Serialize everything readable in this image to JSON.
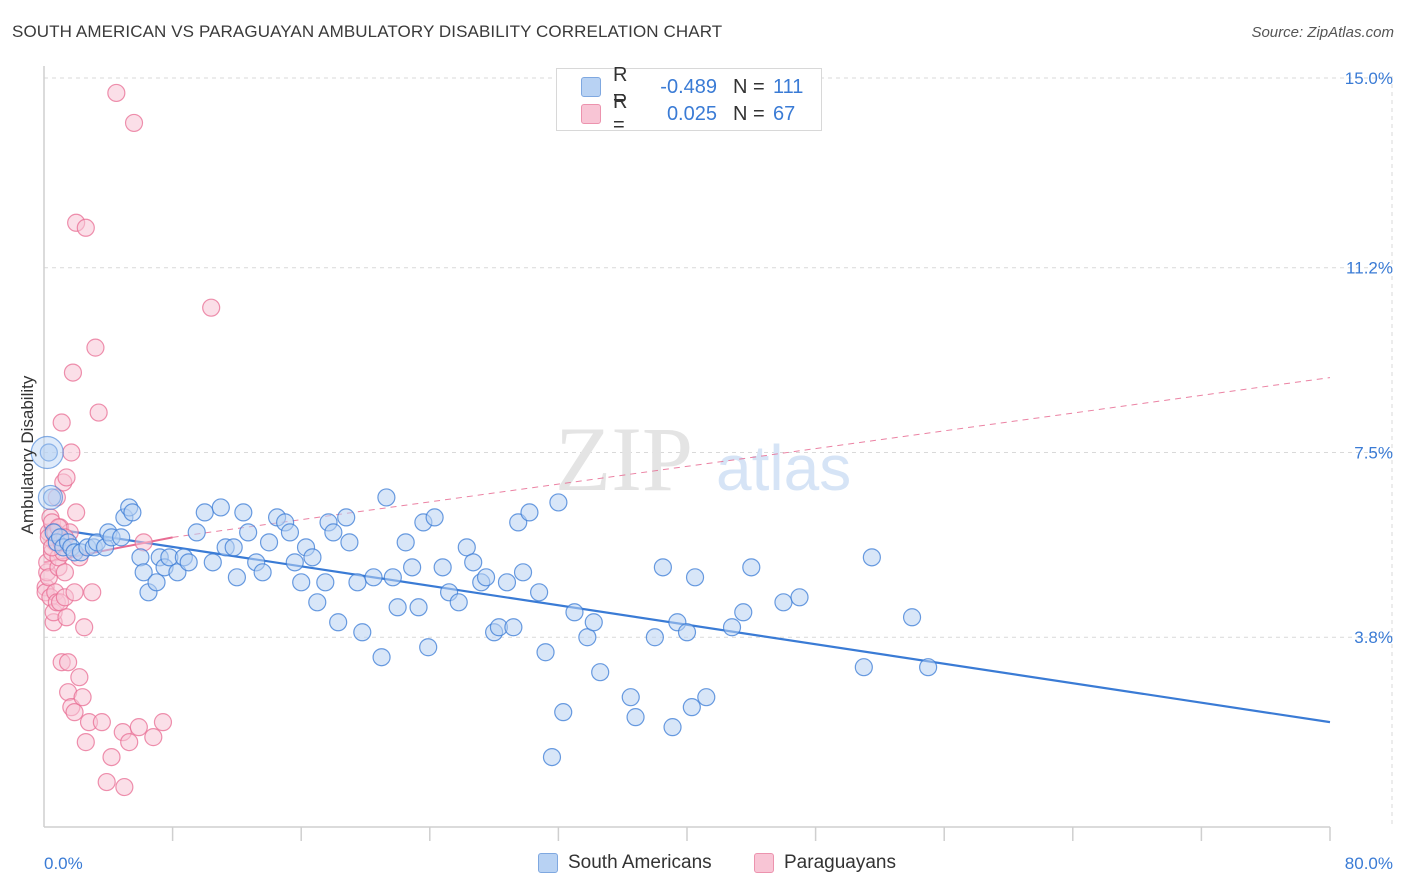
{
  "title": "SOUTH AMERICAN VS PARAGUAYAN AMBULATORY DISABILITY CORRELATION CHART",
  "source": "Source: ZipAtlas.com",
  "watermark": {
    "zip": "ZIP",
    "atlas": "atlas"
  },
  "legend": {
    "rows": [
      {
        "r_label": "R =",
        "r_value": "-0.489",
        "n_label": "N =",
        "n_value": "111"
      },
      {
        "r_label": "R =",
        "r_value": "0.025",
        "n_label": "N =",
        "n_value": "67"
      }
    ]
  },
  "bottom_legend": {
    "series1": "South Americans",
    "series2": "Paraguayans"
  },
  "chart_data": {
    "type": "scatter",
    "title": "SOUTH AMERICAN VS PARAGUAYAN AMBULATORY DISABILITY CORRELATION CHART",
    "xlabel": "",
    "ylabel": "Ambulatory Disability",
    "xlim": [
      0,
      80
    ],
    "ylim": [
      0,
      15.4
    ],
    "x_tick_labels": [
      "0.0%",
      "80.0%"
    ],
    "y_ticks": [
      3.8,
      7.5,
      11.2,
      15.0
    ],
    "y_tick_labels": [
      "3.8%",
      "7.5%",
      "11.2%",
      "15.0%"
    ],
    "colors": {
      "blue": "#3a7bd5",
      "blue_fill": "#b8d2f3",
      "pink": "#e86c93",
      "pink_fill": "#f8c5d5"
    },
    "series": [
      {
        "name": "South Americans",
        "color": "#3a7bd5",
        "trend": {
          "x": [
            0,
            80
          ],
          "y": [
            6.0,
            2.1
          ],
          "style": "solid"
        },
        "points": [
          [
            0.3,
            7.5
          ],
          [
            0.5,
            6.6
          ],
          [
            0.6,
            5.9
          ],
          [
            0.8,
            5.7
          ],
          [
            1.0,
            5.8
          ],
          [
            1.2,
            5.6
          ],
          [
            1.5,
            5.7
          ],
          [
            1.7,
            5.6
          ],
          [
            1.9,
            5.5
          ],
          [
            2.3,
            5.5
          ],
          [
            2.7,
            5.6
          ],
          [
            3.1,
            5.6
          ],
          [
            3.3,
            5.7
          ],
          [
            3.8,
            5.6
          ],
          [
            4.0,
            5.9
          ],
          [
            4.2,
            5.8
          ],
          [
            4.8,
            5.8
          ],
          [
            5.0,
            6.2
          ],
          [
            5.3,
            6.4
          ],
          [
            5.5,
            6.3
          ],
          [
            6.0,
            5.4
          ],
          [
            6.2,
            5.1
          ],
          [
            6.5,
            4.7
          ],
          [
            7.0,
            4.9
          ],
          [
            7.2,
            5.4
          ],
          [
            7.5,
            5.2
          ],
          [
            7.8,
            5.4
          ],
          [
            8.3,
            5.1
          ],
          [
            8.7,
            5.4
          ],
          [
            9.0,
            5.3
          ],
          [
            9.5,
            5.9
          ],
          [
            10.0,
            6.3
          ],
          [
            10.5,
            5.3
          ],
          [
            11.0,
            6.4
          ],
          [
            11.3,
            5.6
          ],
          [
            11.8,
            5.6
          ],
          [
            12.0,
            5.0
          ],
          [
            12.4,
            6.3
          ],
          [
            12.7,
            5.9
          ],
          [
            13.2,
            5.3
          ],
          [
            13.6,
            5.1
          ],
          [
            14.0,
            5.7
          ],
          [
            14.5,
            6.2
          ],
          [
            15.0,
            6.1
          ],
          [
            15.3,
            5.9
          ],
          [
            15.6,
            5.3
          ],
          [
            16.0,
            4.9
          ],
          [
            16.3,
            5.6
          ],
          [
            16.7,
            5.4
          ],
          [
            17.0,
            4.5
          ],
          [
            17.5,
            4.9
          ],
          [
            17.7,
            6.1
          ],
          [
            18.0,
            5.9
          ],
          [
            18.3,
            4.1
          ],
          [
            18.8,
            6.2
          ],
          [
            19.0,
            5.7
          ],
          [
            19.5,
            4.9
          ],
          [
            19.8,
            3.9
          ],
          [
            20.5,
            5.0
          ],
          [
            21.0,
            3.4
          ],
          [
            21.3,
            6.6
          ],
          [
            21.7,
            5.0
          ],
          [
            22.0,
            4.4
          ],
          [
            22.5,
            5.7
          ],
          [
            22.9,
            5.2
          ],
          [
            23.3,
            4.4
          ],
          [
            23.6,
            6.1
          ],
          [
            23.9,
            3.6
          ],
          [
            24.3,
            6.2
          ],
          [
            24.8,
            5.2
          ],
          [
            25.2,
            4.7
          ],
          [
            25.8,
            4.5
          ],
          [
            26.3,
            5.6
          ],
          [
            26.7,
            5.3
          ],
          [
            27.2,
            4.9
          ],
          [
            27.5,
            5.0
          ],
          [
            28.0,
            3.9
          ],
          [
            28.3,
            4.0
          ],
          [
            28.8,
            4.9
          ],
          [
            29.2,
            4.0
          ],
          [
            29.5,
            6.1
          ],
          [
            29.8,
            5.1
          ],
          [
            30.2,
            6.3
          ],
          [
            30.8,
            4.7
          ],
          [
            31.2,
            3.5
          ],
          [
            31.6,
            1.4
          ],
          [
            32.0,
            6.5
          ],
          [
            32.3,
            2.3
          ],
          [
            33.0,
            4.3
          ],
          [
            33.8,
            3.8
          ],
          [
            34.2,
            4.1
          ],
          [
            34.6,
            3.1
          ],
          [
            36.5,
            2.6
          ],
          [
            36.8,
            2.2
          ],
          [
            38.0,
            3.8
          ],
          [
            38.5,
            5.2
          ],
          [
            39.1,
            2.0
          ],
          [
            39.4,
            4.1
          ],
          [
            40.0,
            3.9
          ],
          [
            40.3,
            2.4
          ],
          [
            40.5,
            5.0
          ],
          [
            41.2,
            2.6
          ],
          [
            42.8,
            4.0
          ],
          [
            43.5,
            4.3
          ],
          [
            44.0,
            5.2
          ],
          [
            46.0,
            4.5
          ],
          [
            47.0,
            4.6
          ],
          [
            51.0,
            3.2
          ],
          [
            51.5,
            5.4
          ],
          [
            54.0,
            4.2
          ],
          [
            55.0,
            3.2
          ]
        ]
      },
      {
        "name": "Paraguayans",
        "color": "#e86c93",
        "trend": {
          "x": [
            0,
            8,
            80
          ],
          "y": [
            5.3,
            5.8,
            9.0
          ],
          "style": "solid-then-dashed"
        },
        "points": [
          [
            0.1,
            4.8
          ],
          [
            0.1,
            4.7
          ],
          [
            0.2,
            5.1
          ],
          [
            0.2,
            5.3
          ],
          [
            0.3,
            5.0
          ],
          [
            0.3,
            5.9
          ],
          [
            0.4,
            4.6
          ],
          [
            0.4,
            6.2
          ],
          [
            0.5,
            5.5
          ],
          [
            0.5,
            6.1
          ],
          [
            0.6,
            4.1
          ],
          [
            0.6,
            4.3
          ],
          [
            0.7,
            4.7
          ],
          [
            0.7,
            5.7
          ],
          [
            0.8,
            4.5
          ],
          [
            0.8,
            6.6
          ],
          [
            0.9,
            5.2
          ],
          [
            0.9,
            5.4
          ],
          [
            1.0,
            4.5
          ],
          [
            1.0,
            6.0
          ],
          [
            1.1,
            8.1
          ],
          [
            1.1,
            3.3
          ],
          [
            1.2,
            6.9
          ],
          [
            1.2,
            5.5
          ],
          [
            1.3,
            5.1
          ],
          [
            1.3,
            4.6
          ],
          [
            1.4,
            4.2
          ],
          [
            1.4,
            7.0
          ],
          [
            1.5,
            3.3
          ],
          [
            1.5,
            2.7
          ],
          [
            1.6,
            5.9
          ],
          [
            1.7,
            7.5
          ],
          [
            1.7,
            2.4
          ],
          [
            1.8,
            9.1
          ],
          [
            1.9,
            4.7
          ],
          [
            1.9,
            2.3
          ],
          [
            2.0,
            6.3
          ],
          [
            2.0,
            12.1
          ],
          [
            2.2,
            5.4
          ],
          [
            2.2,
            3.0
          ],
          [
            2.4,
            2.6
          ],
          [
            2.5,
            4.0
          ],
          [
            2.6,
            12.0
          ],
          [
            2.6,
            1.7
          ],
          [
            2.8,
            2.1
          ],
          [
            3.0,
            4.7
          ],
          [
            3.2,
            9.6
          ],
          [
            3.4,
            8.3
          ],
          [
            3.6,
            2.1
          ],
          [
            3.9,
            0.9
          ],
          [
            4.2,
            1.4
          ],
          [
            4.5,
            14.7
          ],
          [
            4.9,
            1.9
          ],
          [
            5.0,
            0.8
          ],
          [
            5.3,
            1.7
          ],
          [
            5.6,
            14.1
          ],
          [
            5.9,
            2.0
          ],
          [
            6.2,
            5.7
          ],
          [
            6.8,
            1.8
          ],
          [
            7.4,
            2.1
          ],
          [
            0.3,
            5.8
          ],
          [
            0.5,
            5.6
          ],
          [
            0.7,
            5.9
          ],
          [
            0.9,
            6.0
          ],
          [
            1.1,
            5.7
          ],
          [
            1.3,
            5.8
          ],
          [
            10.4,
            10.4
          ]
        ]
      }
    ]
  }
}
